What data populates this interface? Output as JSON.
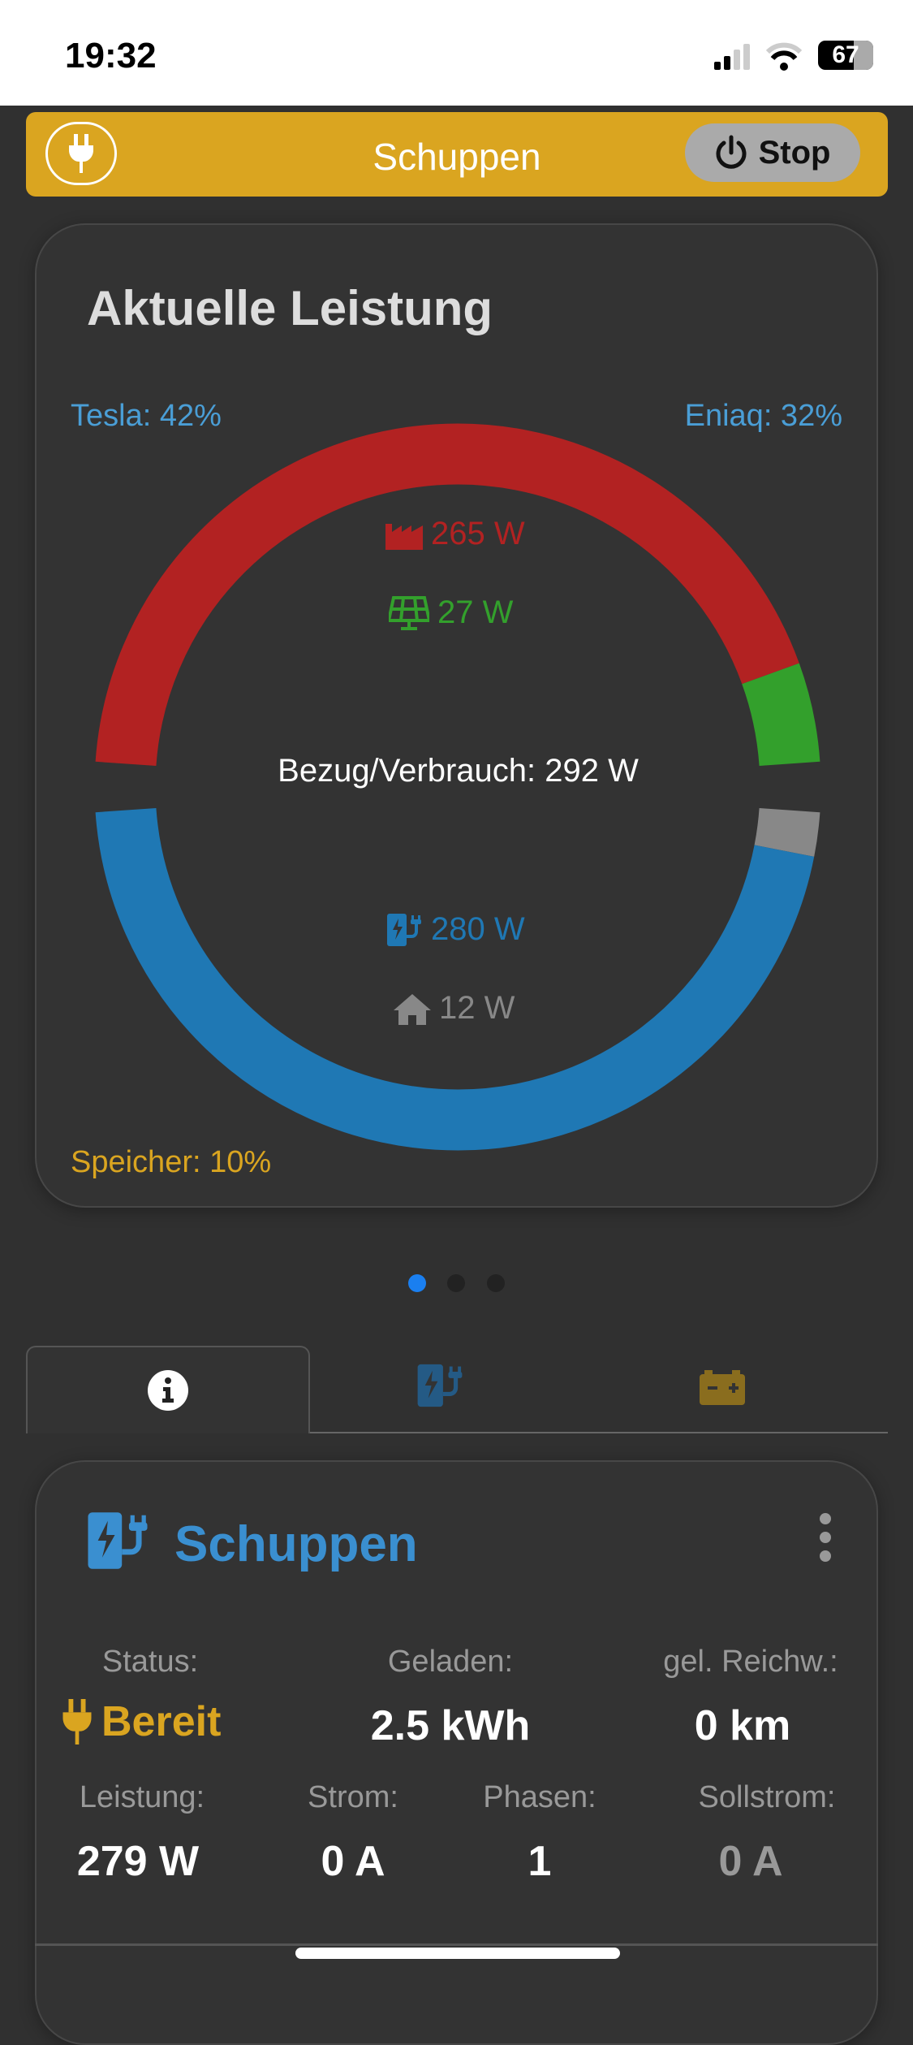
{
  "status_bar": {
    "time": "19:32",
    "battery": "67"
  },
  "header": {
    "title": "Schuppen",
    "stop_label": "Stop",
    "accent": "#daa520"
  },
  "power_card": {
    "title": "Aktuelle Leistung",
    "tesla": "Tesla: 42%",
    "eniaq": "Eniaq: 32%",
    "speicher": "Speicher: 10%",
    "grid": "265 W",
    "solar": "27 W",
    "total": "Bezug/Verbrauch: 292 W",
    "charger": "280 W",
    "house": "12 W",
    "sources": [
      {
        "name": "grid",
        "value": 265,
        "color": "#b22222"
      },
      {
        "name": "solar",
        "value": 27,
        "color": "#33a02c"
      }
    ],
    "consumers": [
      {
        "name": "house",
        "value": 12,
        "color": "#888888"
      },
      {
        "name": "charger",
        "value": 280,
        "color": "#1f78b4"
      }
    ]
  },
  "pager": {
    "count": 3,
    "active": 0
  },
  "tabs": [
    {
      "icon": "info-icon",
      "active": true
    },
    {
      "icon": "charger-icon"
    },
    {
      "icon": "battery-icon"
    }
  ],
  "charger_card": {
    "title": "Schuppen",
    "stats": [
      {
        "label": "Status:",
        "value": "Bereit"
      },
      {
        "label": "Geladen:",
        "value": "2.5 kWh"
      },
      {
        "label": "gel. Reichw.:",
        "value": "0 km"
      },
      {
        "label": "Leistung:",
        "value": "279 W"
      },
      {
        "label": "Strom:",
        "value": "0 A"
      },
      {
        "label": "Phasen:",
        "value": "1"
      },
      {
        "label": "Sollstrom:",
        "value": "0 A"
      }
    ]
  }
}
